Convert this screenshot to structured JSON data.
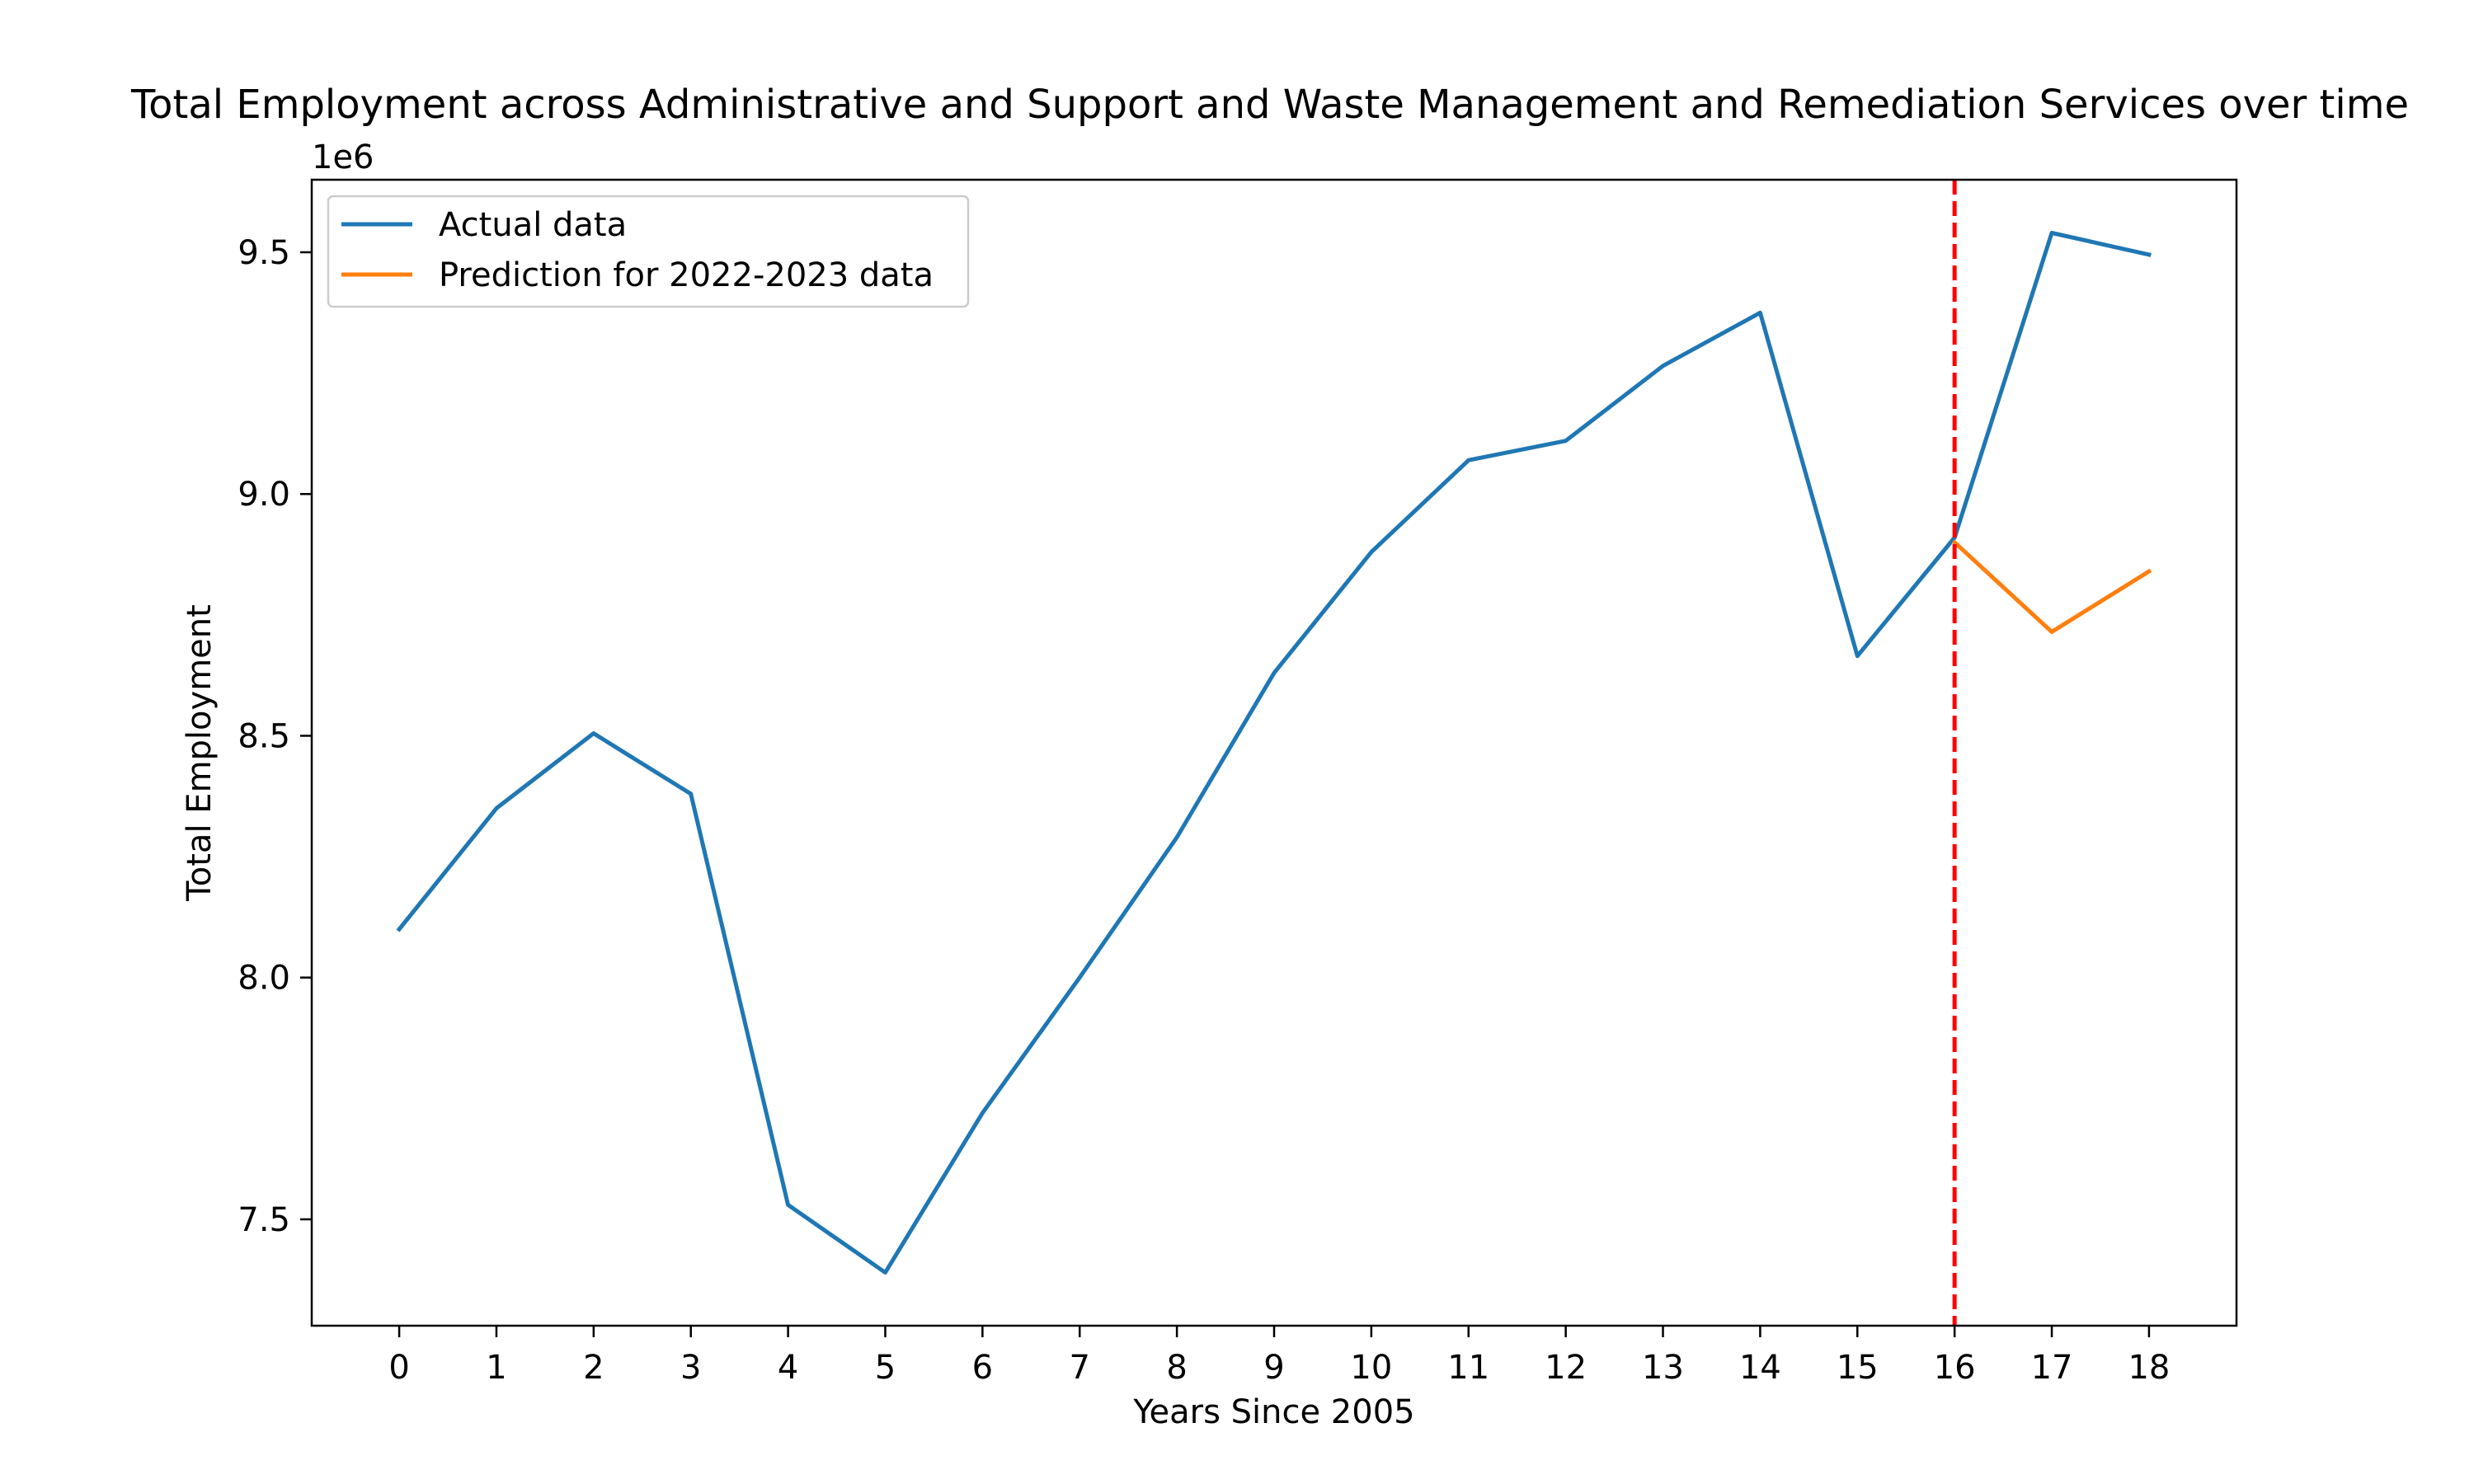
{
  "chart_data": {
    "type": "line",
    "title": "Total Employment across Administrative and Support and Waste Management and Remediation Services over time",
    "xlabel": "Years Since 2005",
    "ylabel": "Total Employment",
    "y_offset_label": "1e6",
    "xlim": [
      -0.9,
      18.9
    ],
    "ylim": [
      7.28,
      9.65
    ],
    "y_unit_scale": 1000000,
    "x_ticks": [
      0,
      1,
      2,
      3,
      4,
      5,
      6,
      7,
      8,
      9,
      10,
      11,
      12,
      13,
      14,
      15,
      16,
      17,
      18
    ],
    "x_tick_labels": [
      "0",
      "1",
      "2",
      "3",
      "4",
      "5",
      "6",
      "7",
      "8",
      "9",
      "10",
      "11",
      "12",
      "13",
      "14",
      "15",
      "16",
      "17",
      "18"
    ],
    "y_ticks": [
      7.5,
      8.0,
      8.5,
      9.0,
      9.5
    ],
    "y_tick_labels": [
      "7.5",
      "8.0",
      "8.5",
      "9.0",
      "9.5"
    ],
    "grid": false,
    "legend_position": "top-left",
    "series": [
      {
        "name": "Actual data",
        "color": "#1f77b4",
        "x": [
          0,
          1,
          2,
          3,
          4,
          5,
          6,
          7,
          8,
          9,
          10,
          11,
          12,
          13,
          14,
          15,
          16,
          17,
          18
        ],
        "y": [
          8.1,
          8.35,
          8.505,
          8.38,
          7.53,
          7.39,
          7.72,
          8.0,
          8.29,
          8.63,
          8.88,
          9.07,
          9.11,
          9.265,
          9.375,
          8.665,
          8.91,
          9.54,
          9.495
        ]
      },
      {
        "name": "Prediction for 2022-2023 data",
        "color": "#ff7f0e",
        "x": [
          16,
          17,
          18
        ],
        "y": [
          8.9,
          8.715,
          8.84
        ]
      }
    ],
    "vertical_line": {
      "x": 16,
      "color": "#ff0000",
      "style": "dashed"
    }
  }
}
